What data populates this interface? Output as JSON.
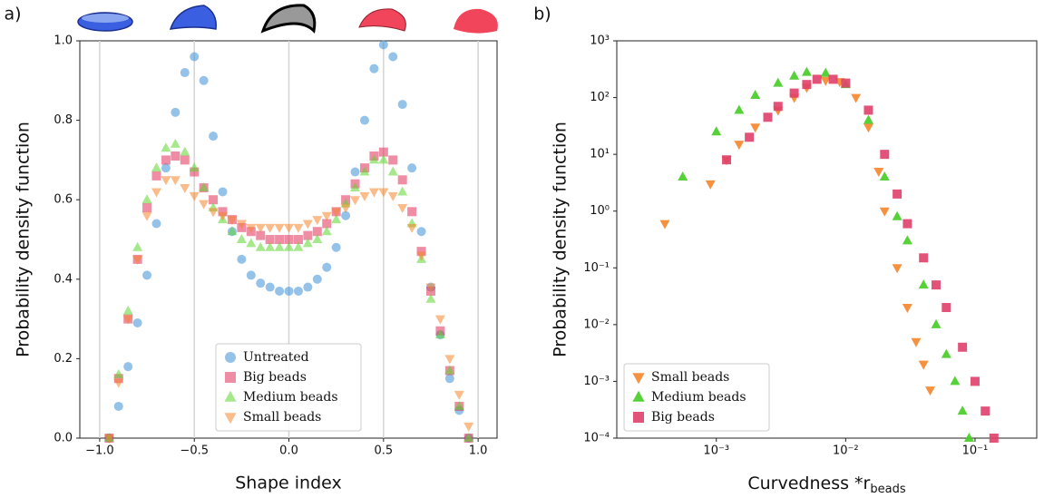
{
  "chart_data": [
    {
      "type": "scatter",
      "panel_label": "a)",
      "xlabel": "Shape index",
      "ylabel": "Probability density function",
      "xlim": [
        -1.105,
        1.1
      ],
      "ylim": [
        0,
        1.0
      ],
      "xticks": [
        {
          "value": -1,
          "label": "−1.0"
        },
        {
          "value": -0.5,
          "label": "−0.5"
        },
        {
          "value": 0,
          "label": "0.0"
        },
        0.5,
        {
          "value": 1,
          "label": "1.0"
        }
      ],
      "yticks": [
        {
          "value": 0,
          "label": "0.0"
        },
        0.2,
        0.4,
        0.6,
        0.8,
        {
          "value": 1,
          "label": "1.0"
        }
      ],
      "grid": "x",
      "legend": "lower center",
      "alpha": 0.55,
      "x": [
        -0.95,
        -0.9,
        -0.85,
        -0.8,
        -0.75,
        -0.7,
        -0.65,
        -0.6,
        -0.55,
        -0.5,
        -0.45,
        -0.4,
        -0.35,
        -0.3,
        -0.25,
        -0.2,
        -0.15,
        -0.1,
        -0.05,
        0,
        0.05,
        0.1,
        0.15,
        0.2,
        0.25,
        0.3,
        0.35,
        0.4,
        0.45,
        0.5,
        0.55,
        0.6,
        0.65,
        0.7,
        0.75,
        0.8,
        0.85,
        0.9,
        0.95
      ],
      "series": [
        {
          "name": "Untreated",
          "color": "#3d8fd6",
          "marker": "circle",
          "values": [
            0,
            0.08,
            0.18,
            0.29,
            0.41,
            0.54,
            0.68,
            0.82,
            0.92,
            0.96,
            0.9,
            0.76,
            0.62,
            0.52,
            0.45,
            0.41,
            0.39,
            0.38,
            0.37,
            0.37,
            0.37,
            0.38,
            0.4,
            0.43,
            0.48,
            0.56,
            0.67,
            0.8,
            0.93,
            0.99,
            0.96,
            0.84,
            0.68,
            0.52,
            0.38,
            0.26,
            0.15,
            0.07,
            0
          ]
        },
        {
          "name": "Big beads",
          "color": "#e0305a",
          "marker": "square",
          "values": [
            0,
            0.15,
            0.3,
            0.45,
            0.58,
            0.66,
            0.7,
            0.71,
            0.7,
            0.67,
            0.63,
            0.6,
            0.57,
            0.55,
            0.53,
            0.52,
            0.51,
            0.5,
            0.5,
            0.5,
            0.5,
            0.51,
            0.52,
            0.54,
            0.57,
            0.6,
            0.64,
            0.68,
            0.71,
            0.72,
            0.7,
            0.65,
            0.57,
            0.47,
            0.37,
            0.27,
            0.17,
            0.08,
            0
          ]
        },
        {
          "name": "Medium beads",
          "color": "#5cd62e",
          "marker": "triangle-up",
          "values": [
            0,
            0.16,
            0.32,
            0.48,
            0.6,
            0.68,
            0.73,
            0.74,
            0.72,
            0.68,
            0.63,
            0.58,
            0.55,
            0.52,
            0.5,
            0.49,
            0.48,
            0.48,
            0.48,
            0.48,
            0.48,
            0.49,
            0.5,
            0.52,
            0.55,
            0.59,
            0.63,
            0.67,
            0.7,
            0.7,
            0.67,
            0.62,
            0.54,
            0.45,
            0.35,
            0.26,
            0.17,
            0.08,
            0
          ]
        },
        {
          "name": "Small beads",
          "color": "#f5852a",
          "marker": "triangle-down",
          "values": [
            0,
            0.14,
            0.3,
            0.45,
            0.56,
            0.62,
            0.65,
            0.65,
            0.63,
            0.61,
            0.59,
            0.57,
            0.56,
            0.55,
            0.54,
            0.53,
            0.53,
            0.53,
            0.53,
            0.53,
            0.53,
            0.54,
            0.55,
            0.56,
            0.57,
            0.58,
            0.6,
            0.61,
            0.62,
            0.62,
            0.61,
            0.58,
            0.53,
            0.46,
            0.38,
            0.3,
            0.2,
            0.11,
            0.03
          ]
        }
      ]
    },
    {
      "type": "scatter",
      "panel_label": "b)",
      "xlabel": {
        "text": "Curvedness *r",
        "subscript": "beads"
      },
      "ylabel": "Probability density function",
      "xscale": "log",
      "yscale": "log",
      "xlim": [
        0.00017,
        0.3
      ],
      "ylim": [
        0.0001,
        1000
      ],
      "xticks": [
        {
          "value": 0.001,
          "label": "10⁻³"
        },
        {
          "value": 0.01,
          "label": "10⁻²"
        },
        {
          "value": 0.1,
          "label": "10⁻¹"
        }
      ],
      "yticks": [
        {
          "value": 1000,
          "label": "10³"
        },
        {
          "value": 100,
          "label": "10²"
        },
        {
          "value": 10,
          "label": "10¹"
        },
        {
          "value": 1,
          "label": "10⁰"
        },
        {
          "value": 0.1,
          "label": "10⁻¹"
        },
        {
          "value": 0.01,
          "label": "10⁻²"
        },
        {
          "value": 0.001,
          "label": "10⁻³"
        },
        {
          "value": 0.0001,
          "label": "10⁻⁴"
        }
      ],
      "legend": "lower left",
      "alpha": 0.9,
      "series": [
        {
          "name": "Small beads",
          "color": "#f5852a",
          "marker": "triangle-down",
          "x": [
            0.0004,
            0.0009,
            0.0012,
            0.0015,
            0.002,
            0.003,
            0.004,
            0.005,
            0.007,
            0.009,
            0.012,
            0.015,
            0.018,
            0.02,
            0.025,
            0.03,
            0.035,
            0.04,
            0.045
          ],
          "values": [
            0.6,
            3,
            8,
            15,
            30,
            60,
            100,
            150,
            200,
            190,
            100,
            30,
            5,
            1,
            0.1,
            0.02,
            0.005,
            0.002,
            0.0007
          ]
        },
        {
          "name": "Medium beads",
          "color": "#44cc22",
          "marker": "triangle-up",
          "x": [
            0.00055,
            0.001,
            0.0015,
            0.002,
            0.003,
            0.004,
            0.005,
            0.007,
            0.01,
            0.015,
            0.02,
            0.025,
            0.03,
            0.04,
            0.05,
            0.06,
            0.07,
            0.08,
            0.09
          ],
          "values": [
            4,
            25,
            60,
            110,
            180,
            240,
            280,
            270,
            170,
            40,
            4,
            0.8,
            0.3,
            0.05,
            0.01,
            0.003,
            0.001,
            0.0003,
            0.0001
          ]
        },
        {
          "name": "Big beads",
          "color": "#e0406a",
          "marker": "square",
          "x": [
            0.0012,
            0.0018,
            0.0025,
            0.003,
            0.004,
            0.005,
            0.006,
            0.008,
            0.01,
            0.015,
            0.02,
            0.025,
            0.03,
            0.04,
            0.05,
            0.06,
            0.08,
            0.1,
            0.12,
            0.14
          ],
          "values": [
            8,
            20,
            45,
            70,
            120,
            170,
            210,
            210,
            180,
            60,
            10,
            2,
            0.6,
            0.15,
            0.05,
            0.02,
            0.004,
            0.001,
            0.0003,
            0.0001
          ]
        }
      ]
    }
  ]
}
